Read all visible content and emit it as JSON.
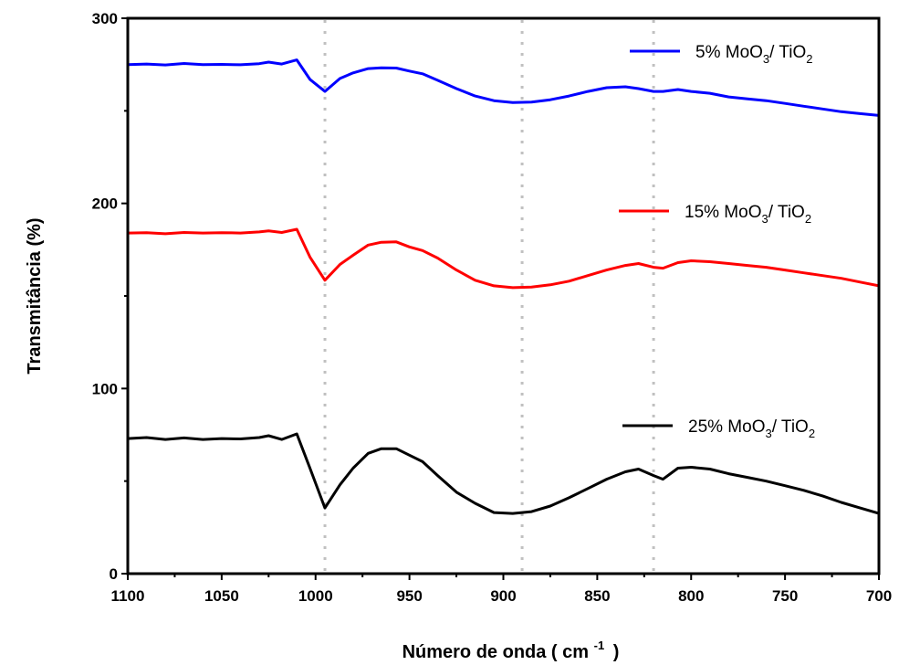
{
  "chart_data": {
    "type": "line",
    "title": "",
    "xlabel": {
      "prefix": "Número de onda (",
      "unit_base": "cm",
      "unit_sup": "-1",
      "suffix": ")"
    },
    "ylabel": "Transmitância (%)",
    "xlim": [
      1100,
      700
    ],
    "ylim": [
      0,
      300
    ],
    "x_reversed": true,
    "grid": false,
    "legend_position": "inline-right",
    "xticks": [
      1100,
      1050,
      1000,
      950,
      900,
      850,
      800,
      750,
      700
    ],
    "yticks": [
      0,
      100,
      200,
      300
    ],
    "reference_lines_x": [
      995,
      890,
      820
    ],
    "series": [
      {
        "name_parts": {
          "pct": "5% MoO",
          "sub1": "3",
          "mid": "/ TiO",
          "sub2": "2"
        },
        "color": "#0000ff",
        "x": [
          1100,
          1090,
          1080,
          1070,
          1060,
          1050,
          1040,
          1030,
          1025,
          1018,
          1010,
          1003,
          995,
          987,
          980,
          972,
          965,
          957,
          950,
          943,
          935,
          925,
          915,
          905,
          895,
          885,
          875,
          865,
          855,
          845,
          835,
          828,
          820,
          815,
          807,
          800,
          790,
          780,
          770,
          760,
          750,
          740,
          730,
          720,
          710,
          700
        ],
        "y": [
          275,
          275.3,
          274.8,
          275.6,
          275,
          275.1,
          274.9,
          275.5,
          276.3,
          275.3,
          277.5,
          267,
          260.5,
          267.5,
          270.5,
          272.8,
          273.2,
          273.1,
          271.5,
          270,
          266.5,
          262,
          258,
          255.5,
          254.5,
          254.7,
          256,
          258,
          260.5,
          262.5,
          263,
          262,
          260.5,
          260.5,
          261.5,
          260.5,
          259.5,
          257.5,
          256.5,
          255.5,
          254,
          252.5,
          251,
          249.5,
          248.5,
          247.5
        ]
      },
      {
        "name_parts": {
          "pct": "15% MoO",
          "sub1": "3",
          "mid": "/ TiO",
          "sub2": "2"
        },
        "color": "#ff0000",
        "x": [
          1100,
          1090,
          1080,
          1070,
          1060,
          1050,
          1040,
          1030,
          1025,
          1018,
          1010,
          1003,
          995,
          987,
          980,
          972,
          965,
          957,
          950,
          943,
          935,
          925,
          915,
          905,
          895,
          885,
          875,
          865,
          855,
          845,
          835,
          828,
          820,
          815,
          807,
          800,
          790,
          780,
          770,
          760,
          750,
          740,
          730,
          720,
          710,
          700
        ],
        "y": [
          184,
          184.2,
          183.6,
          184.3,
          184,
          184.2,
          184,
          184.6,
          185.2,
          184.3,
          186,
          171,
          158.5,
          167,
          172,
          177.5,
          179,
          179.2,
          176.5,
          174.5,
          170.5,
          164,
          158.5,
          155.5,
          154.5,
          154.8,
          156,
          158,
          161,
          164,
          166.5,
          167.5,
          165.5,
          165,
          168,
          169,
          168.5,
          167.5,
          166.5,
          165.5,
          164,
          162.5,
          161,
          159.5,
          157.5,
          155.5
        ]
      },
      {
        "name_parts": {
          "pct": "25% MoO",
          "sub1": "3",
          "mid": "/ TiO",
          "sub2": "2"
        },
        "color": "#000000",
        "x": [
          1100,
          1090,
          1080,
          1070,
          1060,
          1050,
          1040,
          1030,
          1025,
          1018,
          1010,
          1003,
          995,
          987,
          980,
          972,
          965,
          957,
          950,
          943,
          935,
          925,
          915,
          905,
          895,
          885,
          875,
          865,
          855,
          845,
          835,
          828,
          820,
          815,
          807,
          800,
          790,
          780,
          770,
          760,
          750,
          740,
          730,
          720,
          710,
          700
        ],
        "y": [
          73,
          73.5,
          72.5,
          73.3,
          72.5,
          73,
          72.8,
          73.5,
          74.5,
          72.5,
          75.5,
          57,
          35.5,
          48,
          57,
          65,
          67.5,
          67.5,
          64,
          60.5,
          53,
          44,
          38,
          33,
          32.5,
          33.5,
          36.5,
          41,
          46,
          51,
          55,
          56.5,
          53,
          51,
          57,
          57.5,
          56.5,
          54,
          52,
          50,
          47.5,
          45,
          42,
          38.5,
          35.5,
          32.5
        ]
      }
    ]
  }
}
